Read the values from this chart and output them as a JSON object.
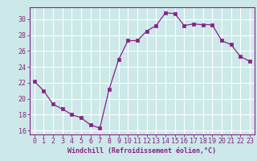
{
  "x": [
    0,
    1,
    2,
    3,
    4,
    5,
    6,
    7,
    8,
    9,
    10,
    11,
    12,
    13,
    14,
    15,
    16,
    17,
    18,
    19,
    20,
    21,
    22,
    23
  ],
  "y": [
    22.2,
    21.0,
    19.3,
    18.7,
    18.0,
    17.6,
    16.7,
    16.3,
    21.2,
    24.9,
    27.3,
    27.3,
    28.5,
    29.2,
    30.8,
    30.7,
    29.2,
    29.4,
    29.3,
    29.3,
    27.3,
    26.8,
    25.3,
    24.7
  ],
  "line_color": "#882288",
  "marker": "s",
  "marker_size": 2.2,
  "bg_color": "#cce8e8",
  "grid_color": "#ffffff",
  "xlabel": "Windchill (Refroidissement éolien,°C)",
  "ylim": [
    15.5,
    31.5
  ],
  "yticks": [
    16,
    18,
    20,
    22,
    24,
    26,
    28,
    30
  ],
  "xlim": [
    -0.5,
    23.5
  ],
  "xticks": [
    0,
    1,
    2,
    3,
    4,
    5,
    6,
    7,
    8,
    9,
    10,
    11,
    12,
    13,
    14,
    15,
    16,
    17,
    18,
    19,
    20,
    21,
    22,
    23
  ],
  "label_fontsize": 6.0,
  "tick_fontsize": 6.0
}
